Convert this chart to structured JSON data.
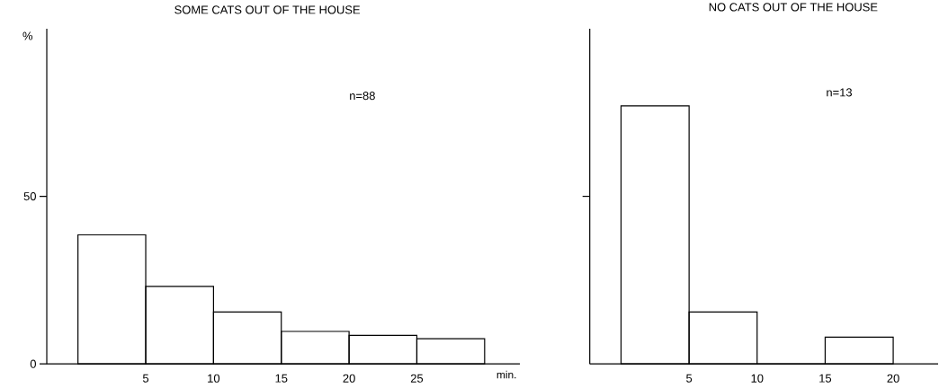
{
  "chart_data": [
    {
      "type": "histogram",
      "title": "SOME CATS OUT OF THE HOUSE",
      "ylabel": "%",
      "xlabel": "min.",
      "annotations": [
        "n=88"
      ],
      "color": "#000000",
      "bins": [
        0,
        5,
        10,
        15,
        20,
        25,
        30
      ],
      "values": [
        38.5,
        23.1,
        15.5,
        9.7,
        8.5,
        7.5
      ],
      "xlim": [
        -2.3,
        32.6
      ],
      "xticks": [
        5,
        10,
        15,
        20,
        25
      ],
      "ylim": [
        0,
        100
      ],
      "yticks": [
        0,
        50
      ]
    },
    {
      "type": "histogram",
      "title": "NO CATS OUT OF THE HOUSE",
      "annotations": [
        "n=13"
      ],
      "color": "#000000",
      "bins": [
        0,
        5,
        10,
        15,
        20
      ],
      "values": [
        77,
        15.5,
        0,
        8
      ],
      "xlim": [
        -2.3,
        23.3
      ],
      "xticks": [
        5,
        10,
        15,
        20
      ],
      "ylim": [
        0,
        100
      ],
      "yticks": [
        50
      ],
      "tick_labels": "x"
    }
  ]
}
